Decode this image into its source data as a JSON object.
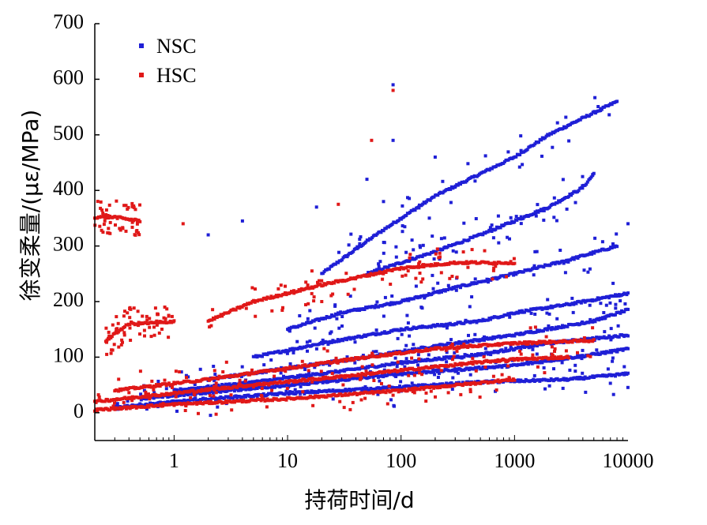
{
  "chart_data": {
    "type": "scatter",
    "title": "",
    "xlabel": "持荷时间/d",
    "ylabel": "徐变柔量/(με/MPa)",
    "xscale": "log",
    "xlim": [
      0.2,
      10000
    ],
    "ylim": [
      -50,
      700
    ],
    "x_ticks": [
      1,
      10,
      100,
      1000,
      10000
    ],
    "x_tick_labels": [
      "1",
      "10",
      "100",
      "1000",
      "10000"
    ],
    "y_ticks": [
      0,
      100,
      200,
      300,
      400,
      500,
      600,
      700
    ],
    "y_tick_labels": [
      "0",
      "100",
      "200",
      "300",
      "400",
      "500",
      "600",
      "700"
    ],
    "grid": false,
    "legend_position": "top-left",
    "series": [
      {
        "name": "NSC",
        "color": "#1f1fd6",
        "curves": [
          {
            "x": [
              20,
              60,
              100,
              200,
              500,
              1000,
              2000,
              4000,
              8000
            ],
            "y": [
              250,
              320,
              350,
              390,
              430,
              460,
              500,
              530,
              560
            ]
          },
          {
            "x": [
              50,
              100,
              200,
              500,
              1000,
              2000,
              4000,
              5000
            ],
            "y": [
              250,
              270,
              290,
              320,
              345,
              370,
              405,
              430
            ]
          },
          {
            "x": [
              10,
              30,
              100,
              300,
              1000,
              3000,
              8000
            ],
            "y": [
              150,
              180,
              200,
              225,
              250,
              275,
              300
            ]
          },
          {
            "x": [
              5,
              20,
              100,
              500,
              1000,
              3000,
              10000
            ],
            "y": [
              100,
              125,
              150,
              165,
              180,
              195,
              215
            ]
          },
          {
            "x": [
              2,
              10,
              50,
              200,
              1000,
              5000,
              10000
            ],
            "y": [
              60,
              80,
              100,
              120,
              140,
              165,
              185
            ]
          },
          {
            "x": [
              1,
              5,
              30,
              100,
              500,
              2000,
              10000
            ],
            "y": [
              40,
              55,
              75,
              90,
              105,
              125,
              140
            ]
          },
          {
            "x": [
              0.5,
              3,
              20,
              100,
              1000,
              5000,
              10000
            ],
            "y": [
              25,
              40,
              55,
              70,
              85,
              105,
              115
            ]
          },
          {
            "x": [
              0.3,
              2,
              10,
              80,
              500,
              3000,
              10000
            ],
            "y": [
              10,
              25,
              35,
              45,
              55,
              60,
              70
            ]
          }
        ],
        "outliers": [
          {
            "x": 85,
            "y": 590
          },
          {
            "x": 85,
            "y": 490
          },
          {
            "x": 18,
            "y": 370
          },
          {
            "x": 4,
            "y": 345
          },
          {
            "x": 2,
            "y": 320
          },
          {
            "x": 70,
            "y": 380
          },
          {
            "x": 50,
            "y": 420
          },
          {
            "x": 200,
            "y": 460
          },
          {
            "x": 10000,
            "y": 340
          }
        ]
      },
      {
        "name": "HSC",
        "color": "#e01818",
        "curves": [
          {
            "x": [
              0.2,
              0.3,
              0.5
            ],
            "y": [
              352,
              352,
              345
            ]
          },
          {
            "x": [
              0.25,
              0.4,
              0.8,
              1
            ],
            "y": [
              130,
              160,
              162,
              165
            ]
          },
          {
            "x": [
              2,
              5,
              20,
              100,
              300,
              1000
            ],
            "y": [
              165,
              200,
              230,
              260,
              270,
              270
            ]
          },
          {
            "x": [
              0.3,
              2,
              10,
              50,
              200,
              1000,
              5000
            ],
            "y": [
              40,
              60,
              80,
              100,
              115,
              125,
              130
            ]
          },
          {
            "x": [
              0.2,
              1,
              5,
              30,
              150,
              800,
              3000
            ],
            "y": [
              20,
              35,
              50,
              65,
              80,
              95,
              100
            ]
          },
          {
            "x": [
              0.2,
              1,
              10,
              100,
              1000
            ],
            "y": [
              5,
              15,
              25,
              40,
              60
            ]
          }
        ],
        "outliers": [
          {
            "x": 85,
            "y": 580
          },
          {
            "x": 55,
            "y": 490
          },
          {
            "x": 28,
            "y": 375
          },
          {
            "x": 1.2,
            "y": 340
          },
          {
            "x": 20,
            "y": 200
          }
        ]
      }
    ]
  }
}
